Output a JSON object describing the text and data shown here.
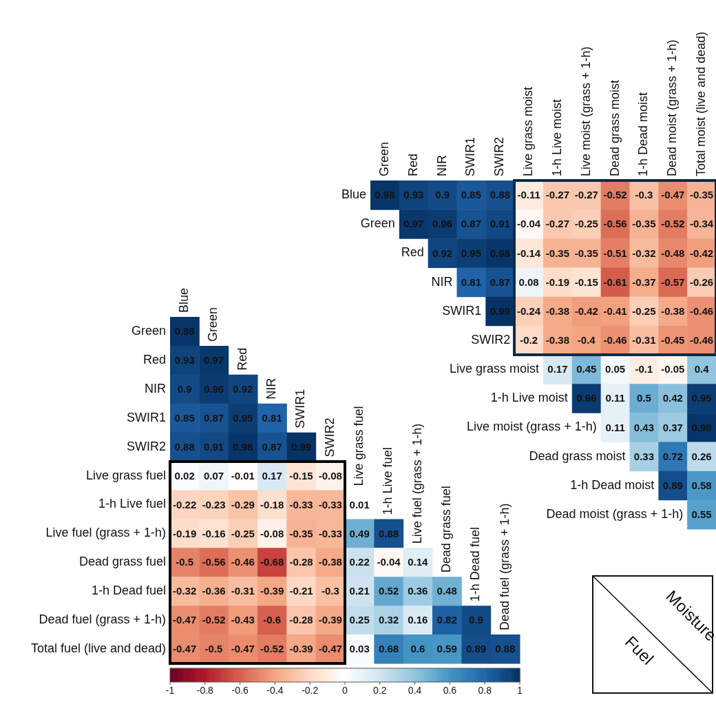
{
  "chart_data": [
    {
      "type": "heatmap",
      "categories": [
        "Blue",
        "Green",
        "Red",
        "NIR",
        "SWIR1",
        "SWIR2",
        "Live grass fuel",
        "1-h Live fuel",
        "Live fuel (grass + 1-h)",
        "Dead grass fuel",
        "1-h Dead fuel",
        "Dead fuel (grass + 1-h)"
      ],
      "y_categories": [
        "Green",
        "Red",
        "NIR",
        "SWIR1",
        "SWIR2",
        "Live grass fuel",
        "1-h Live fuel",
        "Live fuel (grass + 1-h)",
        "Dead grass fuel",
        "1-h Dead fuel",
        "Dead fuel (grass + 1-h)",
        "Total fuel (live and dead)"
      ],
      "cells": [
        [
          0.98,
          null,
          null,
          null,
          null,
          null,
          null,
          null,
          null,
          null,
          null,
          null
        ],
        [
          0.93,
          0.97,
          null,
          null,
          null,
          null,
          null,
          null,
          null,
          null,
          null,
          null
        ],
        [
          0.9,
          0.96,
          0.92,
          null,
          null,
          null,
          null,
          null,
          null,
          null,
          null,
          null
        ],
        [
          0.85,
          0.87,
          0.95,
          0.81,
          null,
          null,
          null,
          null,
          null,
          null,
          null,
          null
        ],
        [
          0.88,
          0.91,
          0.98,
          0.87,
          0.99,
          null,
          null,
          null,
          null,
          null,
          null,
          null
        ],
        [
          0.02,
          0.07,
          -0.01,
          0.17,
          -0.15,
          -0.08,
          null,
          null,
          null,
          null,
          null,
          null
        ],
        [
          -0.22,
          -0.23,
          -0.29,
          -0.18,
          -0.33,
          -0.33,
          0.01,
          null,
          null,
          null,
          null,
          null
        ],
        [
          -0.19,
          -0.16,
          -0.25,
          -0.08,
          -0.35,
          -0.33,
          0.49,
          0.88,
          null,
          null,
          null,
          null
        ],
        [
          -0.5,
          -0.56,
          -0.46,
          -0.68,
          -0.28,
          -0.38,
          0.22,
          -0.04,
          0.14,
          null,
          null,
          null
        ],
        [
          -0.32,
          -0.36,
          -0.31,
          -0.39,
          -0.21,
          -0.3,
          0.21,
          0.52,
          0.36,
          0.48,
          null,
          null
        ],
        [
          -0.47,
          -0.52,
          -0.43,
          -0.6,
          -0.28,
          -0.39,
          0.25,
          0.32,
          0.16,
          0.82,
          0.9,
          null
        ],
        [
          -0.47,
          -0.5,
          -0.47,
          -0.52,
          -0.39,
          -0.47,
          0.03,
          0.68,
          0.6,
          0.59,
          0.89,
          0.88
        ]
      ],
      "clim": [
        -1,
        1
      ],
      "cticks": [
        -1,
        -0.8,
        -0.6,
        -0.4,
        -0.2,
        0,
        0.2,
        0.4,
        0.6,
        0.8,
        1
      ],
      "annotations": [
        "Moisture",
        "Fuel"
      ],
      "data_labels": true
    },
    {
      "type": "heatmap",
      "categories": [
        "Green",
        "Red",
        "NIR",
        "SWIR1",
        "SWIR2",
        "Live grass moist",
        "1-h Live moist",
        "Live moist (grass + 1-h)",
        "Dead grass moist",
        "1-h Dead moist",
        "Dead moist (grass + 1-h)",
        "Total moist (live and dead)"
      ],
      "y_categories": [
        "Blue",
        "Green",
        "Red",
        "NIR",
        "SWIR1",
        "SWIR2",
        "Live grass moist",
        "1-h Live moist",
        "Live moist (grass + 1-h)",
        "Dead grass moist",
        "1-h Dead moist",
        "Dead moist (grass + 1-h)"
      ],
      "cells": [
        [
          0.98,
          0.93,
          0.9,
          0.85,
          0.88,
          -0.11,
          -0.27,
          -0.27,
          -0.52,
          -0.3,
          -0.47,
          -0.35
        ],
        [
          null,
          0.97,
          0.96,
          0.87,
          0.91,
          -0.04,
          -0.27,
          -0.25,
          -0.56,
          -0.35,
          -0.52,
          -0.34
        ],
        [
          null,
          null,
          0.92,
          0.95,
          0.98,
          -0.14,
          -0.35,
          -0.35,
          -0.51,
          -0.32,
          -0.48,
          -0.42
        ],
        [
          null,
          null,
          null,
          0.81,
          0.87,
          0.08,
          -0.19,
          -0.15,
          -0.61,
          -0.37,
          -0.57,
          -0.26
        ],
        [
          null,
          null,
          null,
          null,
          0.99,
          -0.24,
          -0.38,
          -0.42,
          -0.41,
          -0.25,
          -0.38,
          -0.46
        ],
        [
          null,
          null,
          null,
          null,
          null,
          -0.2,
          -0.38,
          -0.4,
          -0.46,
          -0.31,
          -0.45,
          -0.46
        ],
        [
          null,
          null,
          null,
          null,
          null,
          null,
          0.17,
          0.45,
          0.05,
          -0.1,
          -0.05,
          0.4
        ],
        [
          null,
          null,
          null,
          null,
          null,
          null,
          null,
          0.96,
          0.11,
          0.5,
          0.42,
          0.95
        ],
        [
          null,
          null,
          null,
          null,
          null,
          null,
          null,
          null,
          0.11,
          0.43,
          0.37,
          0.98
        ],
        [
          null,
          null,
          null,
          null,
          null,
          null,
          null,
          null,
          null,
          0.33,
          0.72,
          0.26
        ],
        [
          null,
          null,
          null,
          null,
          null,
          null,
          null,
          null,
          null,
          null,
          0.89,
          0.58
        ],
        [
          null,
          null,
          null,
          null,
          null,
          null,
          null,
          null,
          null,
          null,
          null,
          0.55
        ]
      ],
      "data_labels": true
    }
  ]
}
